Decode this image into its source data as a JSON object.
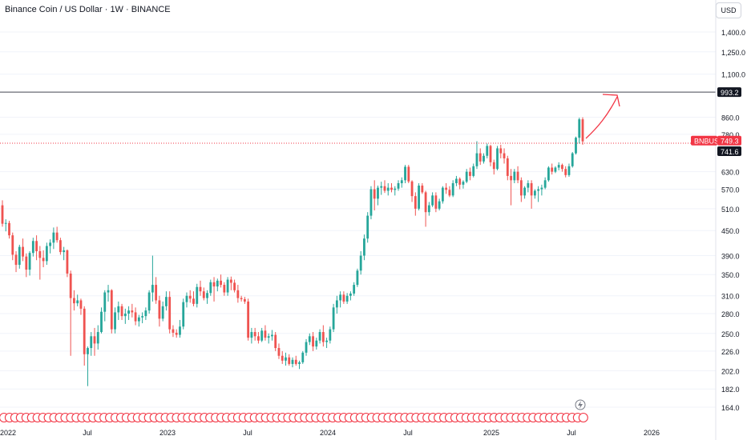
{
  "header": {
    "title": "Binance Coin / US Dollar · 1W · BINANCE",
    "currency_button": "USD"
  },
  "colors": {
    "up": "#26a69a",
    "down": "#ef5350",
    "resistance_line": "#434651",
    "price_line": "#f23645",
    "price_tag_bg": "#f23645",
    "resistance_tag_bg": "#131722",
    "arrow": "#f23645",
    "event_badge": "#f23645"
  },
  "chart_data": {
    "type": "candlestick",
    "symbol": "BNBUSD",
    "timeframe": "1W",
    "y_scale": "log",
    "y_range": [
      150,
      1600
    ],
    "y_ticks": [
      "1,400.0",
      "1,250.0",
      "1,100.0",
      "860.0",
      "780.0",
      "630.0",
      "570.0",
      "510.0",
      "450.0",
      "390.0",
      "350.0",
      "310.0",
      "280.0",
      "250.0",
      "226.0",
      "202.0",
      "182.0",
      "164.0"
    ],
    "x_ticks": [
      "2022",
      "Jul",
      "2023",
      "Jul",
      "2024",
      "Jul",
      "2025",
      "Jul",
      "2026"
    ],
    "price_tags": {
      "symbol_label": "BNBUSD",
      "last_price": "749.3",
      "level_1": "993.2",
      "level_2": "741.6"
    },
    "levels": [
      993.2,
      741.6
    ],
    "ohlc": [
      [
        520,
        535,
        460,
        468
      ],
      [
        468,
        480,
        448,
        470
      ],
      [
        470,
        476,
        430,
        438
      ],
      [
        438,
        445,
        380,
        392
      ],
      [
        392,
        400,
        355,
        370
      ],
      [
        370,
        415,
        362,
        410
      ],
      [
        410,
        430,
        378,
        388
      ],
      [
        388,
        395,
        345,
        360
      ],
      [
        360,
        400,
        348,
        396
      ],
      [
        396,
        432,
        388,
        424
      ],
      [
        424,
        438,
        380,
        400
      ],
      [
        400,
        412,
        340,
        385
      ],
      [
        385,
        402,
        365,
        378
      ],
      [
        378,
        420,
        370,
        412
      ],
      [
        412,
        428,
        395,
        420
      ],
      [
        420,
        458,
        405,
        445
      ],
      [
        445,
        460,
        420,
        426
      ],
      [
        426,
        432,
        392,
        398
      ],
      [
        398,
        410,
        380,
        402
      ],
      [
        402,
        404,
        345,
        352
      ],
      [
        352,
        358,
        220,
        306
      ],
      [
        306,
        320,
        285,
        297
      ],
      [
        297,
        312,
        292,
        302
      ],
      [
        302,
        305,
        278,
        288
      ],
      [
        288,
        292,
        208,
        222
      ],
      [
        222,
        232,
        185,
        230
      ],
      [
        230,
        252,
        220,
        246
      ],
      [
        246,
        258,
        220,
        236
      ],
      [
        236,
        262,
        228,
        252
      ],
      [
        252,
        290,
        250,
        283
      ],
      [
        283,
        320,
        268,
        316
      ],
      [
        316,
        330,
        300,
        320
      ],
      [
        320,
        322,
        250,
        256
      ],
      [
        256,
        290,
        250,
        282
      ],
      [
        282,
        300,
        270,
        292
      ],
      [
        292,
        296,
        270,
        276
      ],
      [
        276,
        288,
        264,
        280
      ],
      [
        280,
        292,
        270,
        285
      ],
      [
        285,
        296,
        274,
        282
      ],
      [
        282,
        290,
        262,
        268
      ],
      [
        268,
        278,
        260,
        274
      ],
      [
        274,
        282,
        265,
        276
      ],
      [
        276,
        290,
        270,
        285
      ],
      [
        285,
        320,
        280,
        316
      ],
      [
        316,
        390,
        300,
        330
      ],
      [
        330,
        345,
        296,
        302
      ],
      [
        302,
        310,
        260,
        272
      ],
      [
        272,
        300,
        268,
        292
      ],
      [
        292,
        318,
        285,
        308
      ],
      [
        308,
        318,
        250,
        256
      ],
      [
        256,
        262,
        245,
        251
      ],
      [
        251,
        256,
        244,
        248
      ],
      [
        248,
        270,
        244,
        260
      ],
      [
        260,
        305,
        256,
        299
      ],
      [
        299,
        316,
        290,
        310
      ],
      [
        310,
        320,
        298,
        305
      ],
      [
        305,
        318,
        292,
        296
      ],
      [
        296,
        332,
        290,
        326
      ],
      [
        326,
        338,
        310,
        318
      ],
      [
        318,
        325,
        302,
        306
      ],
      [
        306,
        320,
        296,
        315
      ],
      [
        315,
        340,
        310,
        335
      ],
      [
        335,
        345,
        300,
        327
      ],
      [
        327,
        342,
        318,
        338
      ],
      [
        338,
        350,
        325,
        330
      ],
      [
        330,
        335,
        310,
        316
      ],
      [
        316,
        345,
        310,
        340
      ],
      [
        340,
        346,
        320,
        334
      ],
      [
        334,
        340,
        316,
        320
      ],
      [
        320,
        330,
        298,
        306
      ],
      [
        306,
        310,
        300,
        304
      ],
      [
        304,
        308,
        296,
        300
      ],
      [
        300,
        305,
        240,
        244
      ],
      [
        244,
        258,
        236,
        252
      ],
      [
        252,
        258,
        240,
        246
      ],
      [
        246,
        252,
        236,
        240
      ],
      [
        240,
        258,
        238,
        254
      ],
      [
        254,
        262,
        240,
        244
      ],
      [
        244,
        250,
        236,
        246
      ],
      [
        246,
        255,
        240,
        248
      ],
      [
        248,
        252,
        226,
        230
      ],
      [
        230,
        236,
        216,
        220
      ],
      [
        220,
        226,
        210,
        214
      ],
      [
        214,
        224,
        208,
        218
      ],
      [
        218,
        222,
        208,
        210
      ],
      [
        210,
        218,
        206,
        215
      ],
      [
        215,
        220,
        208,
        210
      ],
      [
        210,
        214,
        204,
        212
      ],
      [
        212,
        226,
        210,
        224
      ],
      [
        224,
        242,
        220,
        238
      ],
      [
        238,
        250,
        234,
        246
      ],
      [
        246,
        252,
        226,
        232
      ],
      [
        232,
        244,
        228,
        240
      ],
      [
        240,
        256,
        236,
        252
      ],
      [
        252,
        262,
        232,
        238
      ],
      [
        238,
        244,
        230,
        240
      ],
      [
        240,
        260,
        236,
        256
      ],
      [
        256,
        296,
        252,
        290
      ],
      [
        290,
        310,
        280,
        302
      ],
      [
        302,
        318,
        290,
        312
      ],
      [
        312,
        318,
        296,
        300
      ],
      [
        300,
        315,
        296,
        310
      ],
      [
        310,
        318,
        302,
        314
      ],
      [
        314,
        335,
        310,
        330
      ],
      [
        330,
        362,
        326,
        358
      ],
      [
        358,
        400,
        350,
        390
      ],
      [
        390,
        440,
        380,
        430
      ],
      [
        430,
        500,
        420,
        490
      ],
      [
        490,
        580,
        480,
        570
      ],
      [
        570,
        600,
        505,
        540
      ],
      [
        540,
        582,
        520,
        575
      ],
      [
        575,
        595,
        552,
        580
      ],
      [
        580,
        600,
        558,
        565
      ],
      [
        565,
        590,
        550,
        575
      ],
      [
        575,
        590,
        560,
        568
      ],
      [
        568,
        580,
        550,
        572
      ],
      [
        572,
        600,
        565,
        590
      ],
      [
        590,
        610,
        575,
        600
      ],
      [
        600,
        655,
        590,
        648
      ],
      [
        648,
        655,
        590,
        596
      ],
      [
        596,
        600,
        530,
        548
      ],
      [
        548,
        560,
        490,
        510
      ],
      [
        510,
        590,
        505,
        582
      ],
      [
        582,
        590,
        555,
        560
      ],
      [
        560,
        565,
        460,
        500
      ],
      [
        500,
        530,
        490,
        520
      ],
      [
        520,
        560,
        515,
        550
      ],
      [
        550,
        560,
        500,
        510
      ],
      [
        510,
        540,
        505,
        532
      ],
      [
        532,
        580,
        525,
        575
      ],
      [
        575,
        590,
        555,
        568
      ],
      [
        568,
        580,
        545,
        550
      ],
      [
        550,
        600,
        545,
        590
      ],
      [
        590,
        615,
        580,
        605
      ],
      [
        605,
        610,
        570,
        585
      ],
      [
        585,
        600,
        572,
        595
      ],
      [
        595,
        640,
        590,
        630
      ],
      [
        630,
        645,
        600,
        615
      ],
      [
        615,
        660,
        610,
        650
      ],
      [
        650,
        750,
        640,
        700
      ],
      [
        700,
        720,
        655,
        668
      ],
      [
        668,
        700,
        660,
        690
      ],
      [
        690,
        740,
        680,
        730
      ],
      [
        730,
        735,
        650,
        665
      ],
      [
        665,
        675,
        620,
        640
      ],
      [
        640,
        730,
        635,
        720
      ],
      [
        720,
        735,
        680,
        700
      ],
      [
        700,
        720,
        660,
        680
      ],
      [
        680,
        690,
        600,
        615
      ],
      [
        615,
        640,
        520,
        600
      ],
      [
        600,
        640,
        590,
        630
      ],
      [
        630,
        650,
        590,
        600
      ],
      [
        600,
        610,
        530,
        550
      ],
      [
        550,
        580,
        540,
        575
      ],
      [
        575,
        600,
        560,
        590
      ],
      [
        590,
        600,
        510,
        550
      ],
      [
        550,
        570,
        540,
        565
      ],
      [
        565,
        580,
        530,
        570
      ],
      [
        570,
        585,
        550,
        575
      ],
      [
        575,
        610,
        570,
        600
      ],
      [
        600,
        650,
        595,
        645
      ],
      [
        645,
        660,
        620,
        630
      ],
      [
        630,
        650,
        625,
        645
      ],
      [
        645,
        665,
        635,
        655
      ],
      [
        655,
        660,
        630,
        640
      ],
      [
        640,
        650,
        610,
        618
      ],
      [
        618,
        660,
        612,
        650
      ],
      [
        650,
        705,
        645,
        700
      ],
      [
        700,
        770,
        695,
        765
      ],
      [
        765,
        858,
        740,
        850
      ],
      [
        850,
        860,
        735,
        749.3
      ]
    ]
  }
}
